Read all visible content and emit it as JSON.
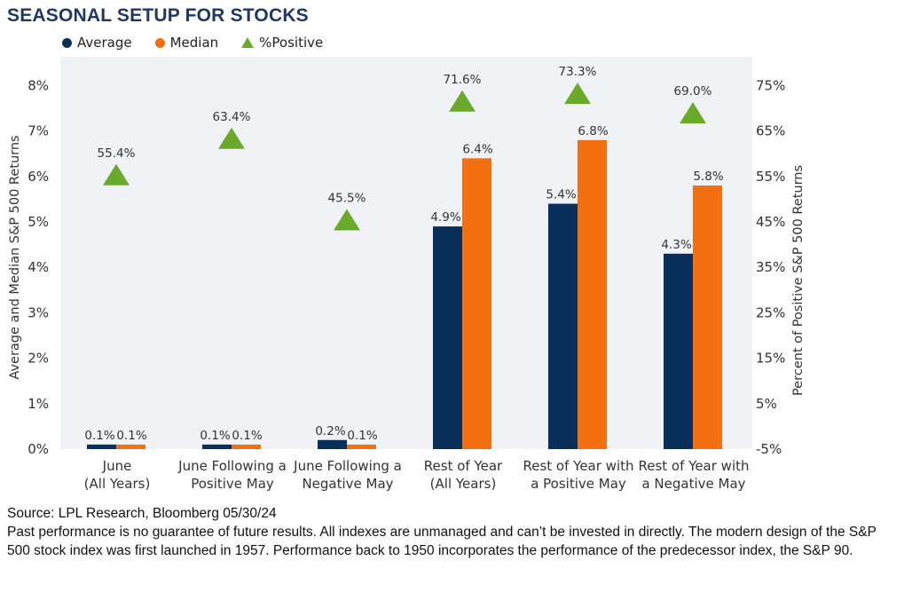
{
  "title": "SEASONAL SETUP FOR STOCKS",
  "legend": {
    "average": "Average",
    "median": "Median",
    "positive": "%Positive"
  },
  "colors": {
    "average": "#0b2f5b",
    "median": "#f36f10",
    "positive": "#6aaa2a",
    "plot_bg": "#f1f2f6"
  },
  "footer": {
    "source": "Source: LPL Research, Bloomberg 05/30/24",
    "disclaimer": "Past performance is no guarantee of future results. All indexes are unmanaged and can’t be invested in directly. The modern design of the S&P 500 stock index was first launched in 1957. Performance back to 1950 incorporates the performance of the predecessor index, the S&P 90."
  },
  "chart_data": {
    "type": "bar",
    "title": "SEASONAL SETUP FOR STOCKS",
    "categories": [
      [
        "June",
        "(All Years)"
      ],
      [
        "June Following a",
        "Positive May"
      ],
      [
        "June Following a",
        "Negative May"
      ],
      [
        "Rest of Year",
        "(All Years)"
      ],
      [
        "Rest of Year with",
        "a Positive May"
      ],
      [
        "Rest of Year with",
        "a Negative May"
      ]
    ],
    "series": [
      {
        "name": "Average",
        "axis": "left",
        "values": [
          0.1,
          0.1,
          0.2,
          4.9,
          5.4,
          4.3
        ],
        "labels": [
          "0.1%",
          "0.1%",
          "0.2%",
          "4.9%",
          "5.4%",
          "4.3%"
        ]
      },
      {
        "name": "Median",
        "axis": "left",
        "values": [
          0.1,
          0.1,
          0.1,
          6.4,
          6.8,
          5.8
        ],
        "labels": [
          "0.1%",
          "0.1%",
          "0.1%",
          "6.4%",
          "6.8%",
          "5.8%"
        ]
      },
      {
        "name": "%Positive",
        "axis": "right",
        "marker": "triangle",
        "values": [
          55.4,
          63.4,
          45.5,
          71.6,
          73.3,
          69.0
        ],
        "labels": [
          "55.4%",
          "63.4%",
          "45.5%",
          "71.6%",
          "73.3%",
          "69.0%"
        ]
      }
    ],
    "ylabel": "Average and Median S&P 500 Returns",
    "ylabel_right": "Percent of Positive S&P 500 Returns",
    "ylim": [
      0,
      8.2
    ],
    "yticks": [
      0,
      1,
      2,
      3,
      4,
      5,
      6,
      7,
      8
    ],
    "ytick_labels": [
      "0%",
      "1%",
      "2%",
      "3%",
      "4%",
      "5%",
      "6%",
      "7%",
      "8%"
    ],
    "ylim_right": [
      -5,
      77
    ],
    "yticks_right": [
      -5,
      5,
      15,
      25,
      35,
      45,
      55,
      65,
      75
    ],
    "ytick_labels_right": [
      "-5%",
      "5%",
      "15%",
      "25%",
      "35%",
      "45%",
      "55%",
      "65%",
      "75%"
    ],
    "grid": false,
    "legend": "top-left"
  }
}
